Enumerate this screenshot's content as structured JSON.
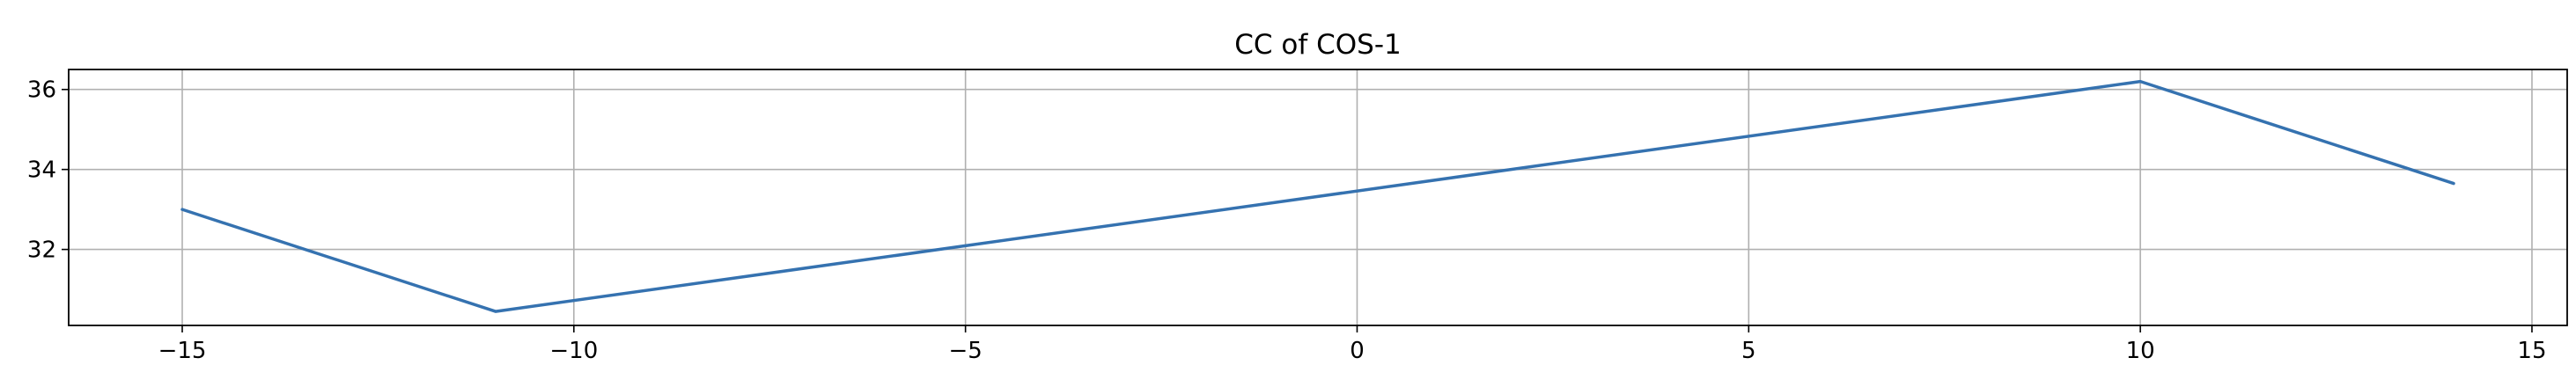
{
  "chart_data": {
    "type": "line",
    "title": "CC of COS-1",
    "xlabel": "",
    "ylabel": "",
    "x": [
      -15,
      -11,
      10,
      14
    ],
    "series": [
      {
        "values": [
          33.0,
          30.45,
          36.2,
          33.65
        ],
        "color": "#3572b0"
      }
    ],
    "xlim": [
      -16.45,
      15.45
    ],
    "ylim": [
      30.1,
      36.5
    ],
    "xticks": [
      -15,
      -10,
      -5,
      0,
      5,
      10,
      15
    ],
    "xtick_labels": [
      "−15",
      "−10",
      "−5",
      "0",
      "5",
      "10",
      "15"
    ],
    "yticks": [
      32,
      34,
      36
    ],
    "ytick_labels": [
      "32",
      "34",
      "36"
    ],
    "grid": true,
    "grid_color": "#b0b0b0",
    "legend": false
  }
}
